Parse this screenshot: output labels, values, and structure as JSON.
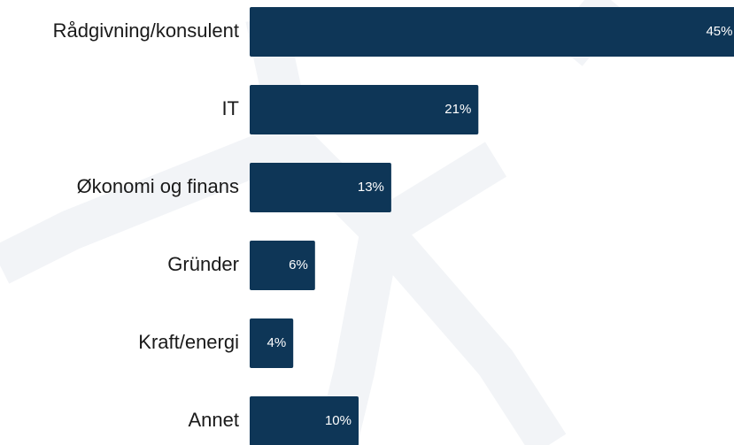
{
  "chart_data": {
    "type": "bar",
    "orientation": "horizontal",
    "categories": [
      "Rådgivning/konsulent",
      "IT",
      "Økonomi og finans",
      "Gründer",
      "Kraft/energi",
      "Annet"
    ],
    "values": [
      45,
      21,
      13,
      6,
      4,
      10
    ],
    "value_labels": [
      "45%",
      "21%",
      "13%",
      "6%",
      "4%",
      "10%"
    ],
    "color": "#0e3657"
  }
}
